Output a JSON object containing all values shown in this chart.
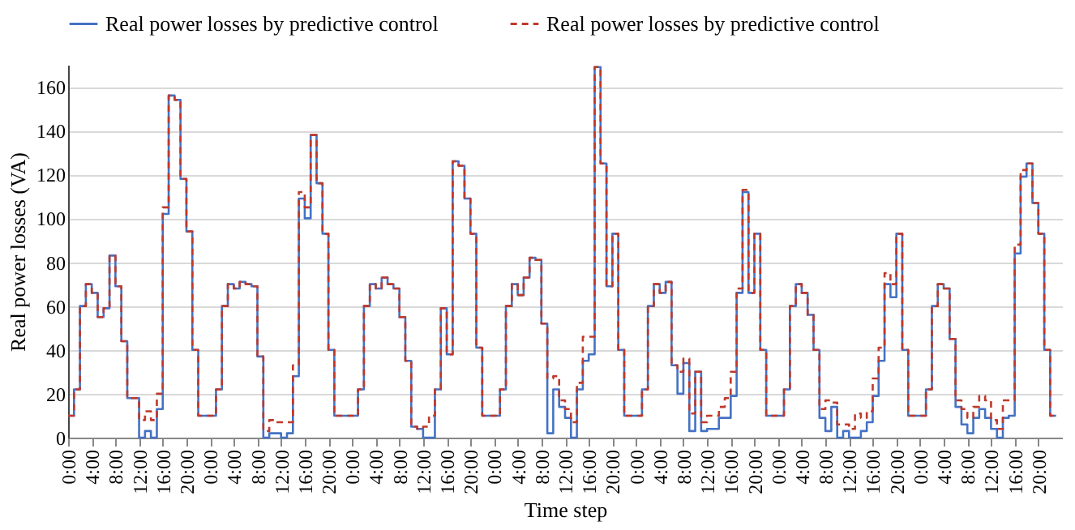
{
  "chart_data": {
    "type": "step",
    "xlabel": "Time step",
    "ylabel": "Real power losses (VA)",
    "categories": [
      "0:00",
      null,
      null,
      null,
      "4:00",
      null,
      null,
      null,
      "8:00",
      null,
      null,
      null,
      "12:00",
      null,
      null,
      null,
      "16:00",
      null,
      null,
      null,
      "20:00",
      null,
      null,
      null,
      "0:00",
      null,
      null,
      null,
      "4:00",
      null,
      null,
      null,
      "8:00",
      null,
      null,
      null,
      "12:00",
      null,
      null,
      null,
      "16:00",
      null,
      null,
      null,
      "20:00",
      null,
      null,
      null,
      "0:00",
      null,
      null,
      null,
      "4:00",
      null,
      null,
      null,
      "8:00",
      null,
      null,
      null,
      "12:00",
      null,
      null,
      null,
      "16:00",
      null,
      null,
      null,
      "20:00",
      null,
      null,
      null,
      "0:00",
      null,
      null,
      null,
      "4:00",
      null,
      null,
      null,
      "8:00",
      null,
      null,
      null,
      "12:00",
      null,
      null,
      null,
      "16:00",
      null,
      null,
      null,
      "20:00",
      null,
      null,
      null,
      "0:00",
      null,
      null,
      null,
      "4:00",
      null,
      null,
      null,
      "8:00",
      null,
      null,
      null,
      "12:00",
      null,
      null,
      null,
      "16:00",
      null,
      null,
      null,
      "20:00",
      null,
      null,
      null,
      "0:00",
      null,
      null,
      null,
      "4:00",
      null,
      null,
      null,
      "8:00",
      null,
      null,
      null,
      "12:00",
      null,
      null,
      null,
      "16:00",
      null,
      null,
      null,
      "20:00",
      null,
      null,
      null,
      "0:00",
      null,
      null,
      null,
      "4:00",
      null,
      null,
      null,
      "8:00",
      null,
      null,
      null,
      "12:00",
      null,
      null,
      null,
      "16:00",
      null,
      null,
      null,
      "20:00",
      null,
      null,
      null
    ],
    "ylim": [
      0,
      170
    ],
    "yticks": [
      0,
      20,
      40,
      60,
      80,
      100,
      120,
      140,
      160
    ],
    "grid": "y",
    "legend": "top",
    "series": [
      {
        "name": "Real power losses by predictive control",
        "color": "#4472c4",
        "line_style": "solid",
        "values": [
          10,
          22,
          60,
          70,
          66,
          55,
          59,
          83,
          69,
          44,
          18,
          18,
          0,
          3,
          0,
          13,
          102,
          156,
          154,
          118,
          94,
          40,
          10,
          10,
          10,
          22,
          60,
          70,
          68,
          71,
          70,
          69,
          37,
          0,
          2,
          2,
          0,
          2,
          28,
          109,
          100,
          138,
          116,
          93,
          40,
          10,
          10,
          10,
          10,
          22,
          60,
          70,
          68,
          73,
          70,
          68,
          55,
          35,
          5,
          4,
          0,
          0,
          22,
          59,
          38,
          126,
          124,
          109,
          93,
          41,
          10,
          10,
          10,
          22,
          60,
          70,
          65,
          73,
          82,
          81,
          52,
          2,
          22,
          14,
          9,
          0,
          22,
          35,
          38,
          169,
          125,
          69,
          93,
          40,
          10,
          10,
          10,
          22,
          60,
          70,
          66,
          71,
          33,
          20,
          34,
          3,
          30,
          3,
          4,
          4,
          9,
          9,
          19,
          66,
          112,
          66,
          93,
          40,
          10,
          10,
          10,
          22,
          60,
          70,
          66,
          56,
          40,
          9,
          3,
          14,
          0,
          3,
          0,
          0,
          3,
          7,
          19,
          35,
          70,
          64,
          93,
          40,
          10,
          10,
          10,
          22,
          60,
          70,
          68,
          45,
          14,
          6,
          2,
          9,
          13,
          9,
          4,
          0,
          9,
          10,
          84,
          119,
          125,
          107,
          93,
          40,
          10,
          10
        ]
      },
      {
        "name": "Real power losses by predictive control",
        "color": "#c0392b",
        "line_style": "dashed",
        "values": [
          10,
          22,
          60,
          70,
          66,
          55,
          59,
          83,
          69,
          44,
          18,
          18,
          8,
          12,
          8,
          20,
          105,
          156,
          154,
          118,
          94,
          40,
          10,
          10,
          10,
          22,
          60,
          70,
          68,
          71,
          70,
          69,
          37,
          3,
          8,
          7,
          7,
          7,
          33,
          112,
          105,
          138,
          116,
          93,
          40,
          10,
          10,
          10,
          10,
          22,
          60,
          70,
          68,
          73,
          70,
          68,
          55,
          35,
          5,
          4,
          5,
          10,
          22,
          59,
          38,
          126,
          124,
          109,
          93,
          41,
          10,
          10,
          10,
          22,
          60,
          70,
          65,
          73,
          82,
          81,
          52,
          27,
          28,
          17,
          13,
          7,
          25,
          46,
          46,
          169,
          125,
          69,
          93,
          40,
          10,
          10,
          10,
          22,
          60,
          70,
          66,
          71,
          33,
          30,
          36,
          11,
          30,
          7,
          10,
          10,
          14,
          18,
          30,
          68,
          113,
          66,
          93,
          40,
          10,
          10,
          10,
          22,
          60,
          70,
          66,
          56,
          40,
          13,
          17,
          16,
          6,
          6,
          4,
          11,
          9,
          12,
          27,
          41,
          75,
          70,
          93,
          40,
          10,
          10,
          10,
          22,
          60,
          70,
          68,
          45,
          17,
          13,
          9,
          14,
          19,
          17,
          8,
          4,
          17,
          17,
          88,
          122,
          125,
          107,
          93,
          40,
          10,
          10
        ]
      }
    ]
  }
}
